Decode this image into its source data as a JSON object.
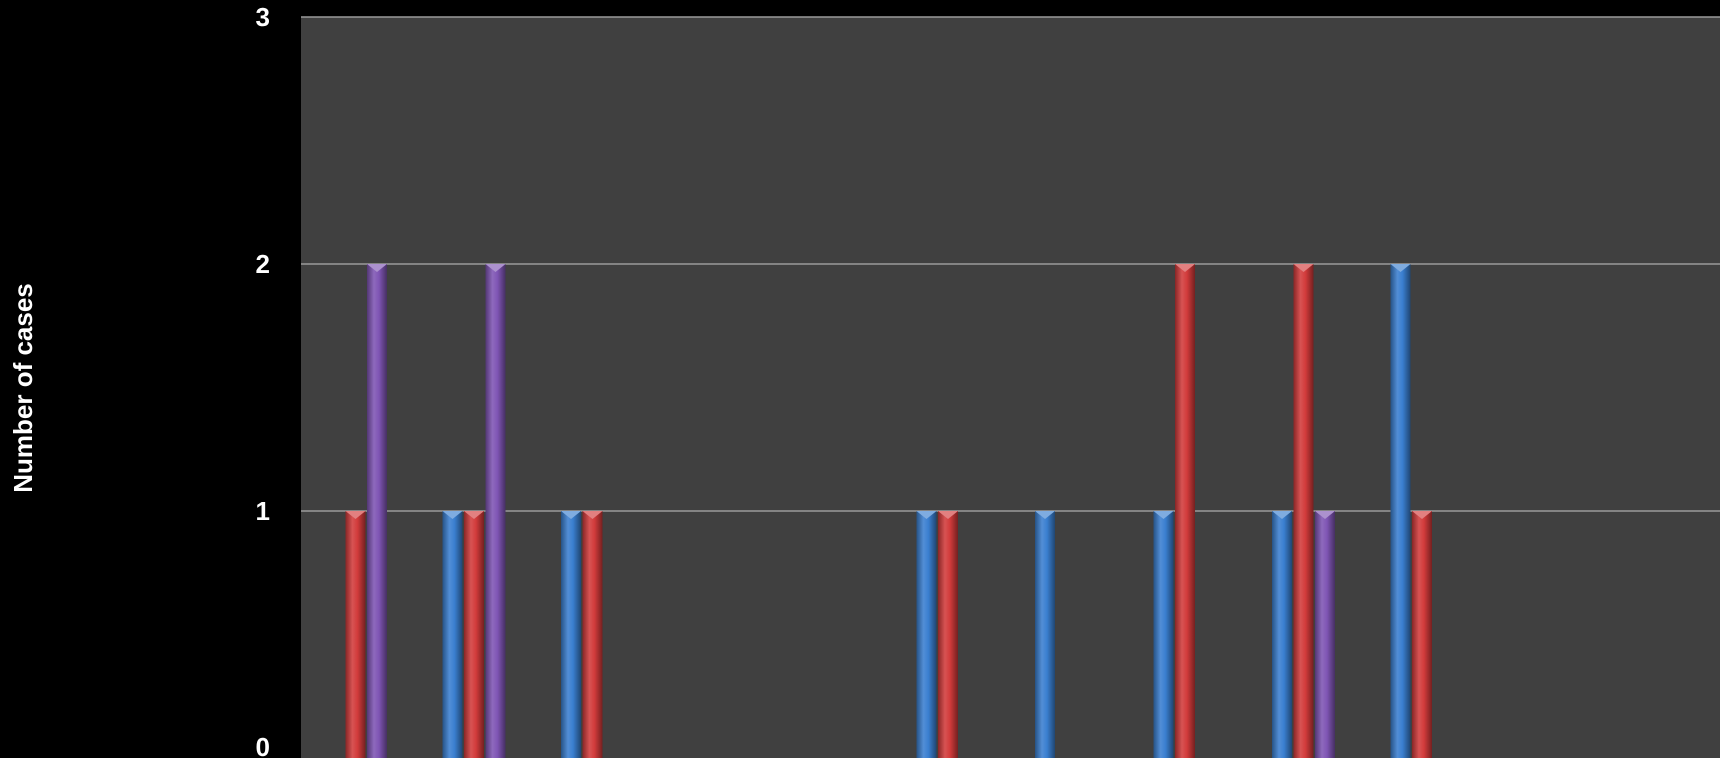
{
  "chart_data": {
    "type": "bar",
    "title": "",
    "xlabel": "",
    "ylabel": "Number of cases",
    "ylim": [
      0,
      3
    ],
    "yticks": [
      0,
      1,
      2,
      3
    ],
    "grid": true,
    "series": [
      {
        "color": "#3a7fd0",
        "values": [
          0,
          1,
          1,
          0,
          0,
          1,
          1,
          1,
          1,
          2,
          0,
          0,
          0,
          0
        ]
      },
      {
        "color": "#d23b3b",
        "values": [
          1,
          1,
          1,
          0,
          0,
          1,
          0,
          2,
          2,
          1,
          0,
          0,
          0,
          0
        ]
      },
      {
        "color": "#7f55b4",
        "values": [
          2,
          2,
          0,
          0,
          0,
          0,
          0,
          0,
          1,
          0,
          0,
          0,
          0,
          0
        ]
      }
    ]
  },
  "colors": {
    "page_background": "#000000",
    "plot_background": "#404040",
    "gridline": "#9a9a9a",
    "text": "#ffffff"
  }
}
